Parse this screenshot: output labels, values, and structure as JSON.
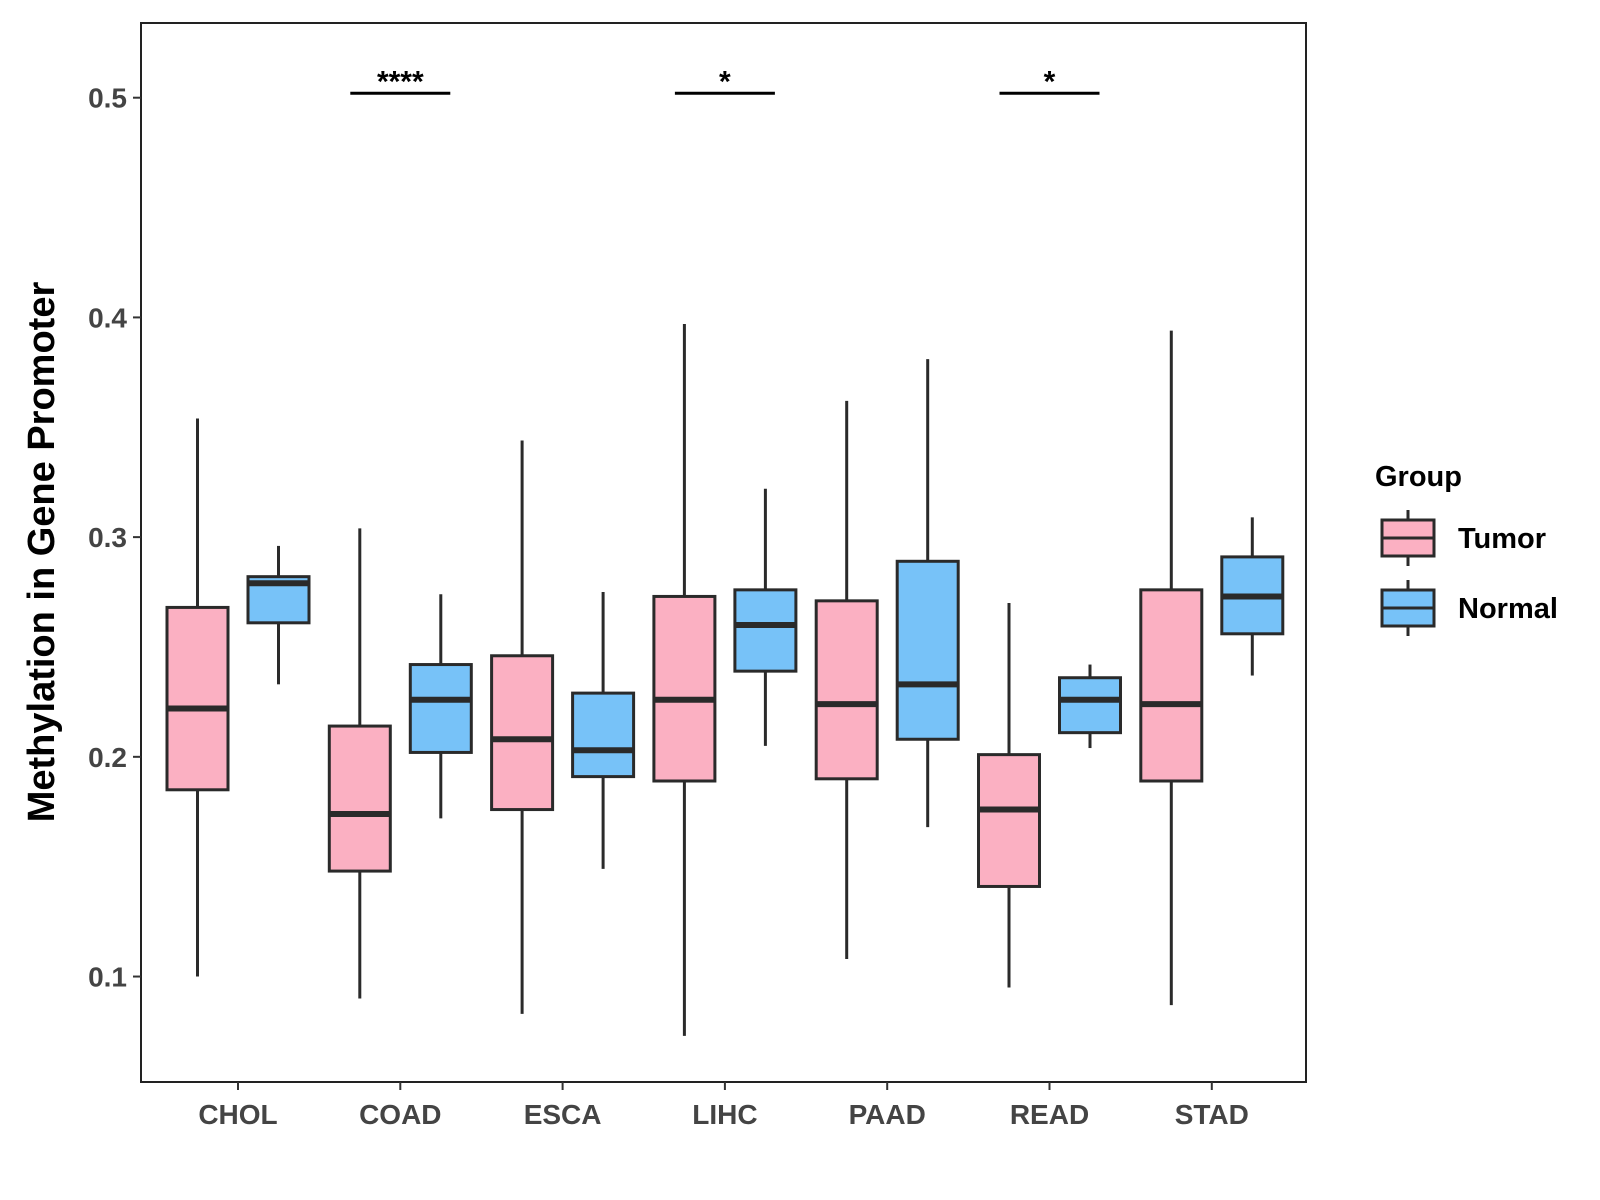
{
  "chart_data": {
    "type": "boxplot",
    "title": "",
    "xlabel": "",
    "ylabel": "Methylation in Gene Promoter",
    "ylim": [
      0.052,
      0.534
    ],
    "yticks": [
      0.1,
      0.2,
      0.3,
      0.4,
      0.5
    ],
    "ytick_labels": [
      "0.1",
      "0.2",
      "0.3",
      "0.4",
      "0.5"
    ],
    "grid": false,
    "legend": {
      "title": "Group",
      "position": "right"
    },
    "categories": [
      "CHOL",
      "COAD",
      "ESCA",
      "LIHC",
      "PAAD",
      "READ",
      "STAD"
    ],
    "series": [
      {
        "name": "Tumor",
        "color": "#FBB0C2",
        "boxes": [
          {
            "min": 0.1,
            "q1": 0.185,
            "median": 0.222,
            "q3": 0.268,
            "max": 0.354
          },
          {
            "min": 0.09,
            "q1": 0.148,
            "median": 0.174,
            "q3": 0.214,
            "max": 0.304
          },
          {
            "min": 0.083,
            "q1": 0.176,
            "median": 0.208,
            "q3": 0.246,
            "max": 0.344
          },
          {
            "min": 0.073,
            "q1": 0.189,
            "median": 0.226,
            "q3": 0.273,
            "max": 0.397
          },
          {
            "min": 0.108,
            "q1": 0.19,
            "median": 0.224,
            "q3": 0.271,
            "max": 0.362
          },
          {
            "min": 0.095,
            "q1": 0.141,
            "median": 0.176,
            "q3": 0.201,
            "max": 0.27
          },
          {
            "min": 0.087,
            "q1": 0.189,
            "median": 0.224,
            "q3": 0.276,
            "max": 0.394
          }
        ]
      },
      {
        "name": "Normal",
        "color": "#77C2F8",
        "boxes": [
          {
            "min": 0.233,
            "q1": 0.261,
            "median": 0.279,
            "q3": 0.282,
            "max": 0.296
          },
          {
            "min": 0.172,
            "q1": 0.202,
            "median": 0.226,
            "q3": 0.242,
            "max": 0.274
          },
          {
            "min": 0.149,
            "q1": 0.191,
            "median": 0.203,
            "q3": 0.229,
            "max": 0.275
          },
          {
            "min": 0.205,
            "q1": 0.239,
            "median": 0.26,
            "q3": 0.276,
            "max": 0.322
          },
          {
            "min": 0.168,
            "q1": 0.208,
            "median": 0.233,
            "q3": 0.289,
            "max": 0.381
          },
          {
            "min": 0.204,
            "q1": 0.211,
            "median": 0.226,
            "q3": 0.236,
            "max": 0.242
          },
          {
            "min": 0.237,
            "q1": 0.256,
            "median": 0.273,
            "q3": 0.291,
            "max": 0.309
          }
        ]
      }
    ],
    "annotations": [
      {
        "category": "COAD",
        "label": "****",
        "y": 0.502
      },
      {
        "category": "LIHC",
        "label": "*",
        "y": 0.502
      },
      {
        "category": "READ",
        "label": "*",
        "y": 0.502
      }
    ]
  }
}
